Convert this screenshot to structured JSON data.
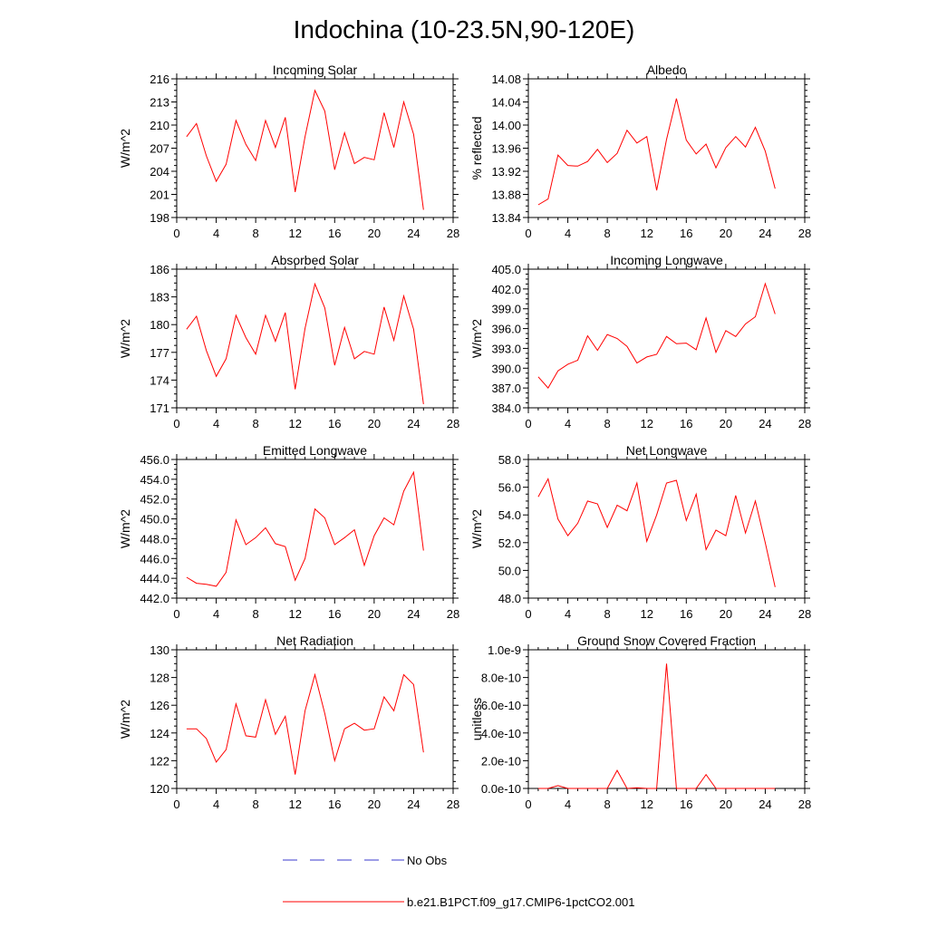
{
  "title": "Indochina (10-23.5N,90-120E)",
  "colors": {
    "series": "#ff0000",
    "obs": "#3a3acc",
    "axis": "#000000"
  },
  "legend": {
    "obs_label": "No Obs",
    "model_label": "b.e21.B1PCT.f09_g17.CMIP6-1pctCO2.001"
  },
  "chart_data": [
    {
      "type": "line",
      "title": "Incoming Solar",
      "ylabel": "W/m^2",
      "xlim": [
        0,
        28
      ],
      "ylim": [
        198,
        216
      ],
      "xticks": [
        "0",
        "4",
        "8",
        "12",
        "16",
        "20",
        "24",
        "28"
      ],
      "yticks": [
        "198",
        "201",
        "204",
        "207",
        "210",
        "213",
        "216"
      ],
      "x": [
        1,
        2,
        3,
        4,
        5,
        6,
        7,
        8,
        9,
        10,
        11,
        12,
        13,
        14,
        15,
        16,
        17,
        18,
        19,
        20,
        21,
        22,
        23,
        24,
        25
      ],
      "series": [
        {
          "values": [
            208.5,
            210.2,
            206.0,
            202.7,
            204.9,
            210.6,
            207.5,
            205.4,
            210.6,
            207.1,
            211.0,
            201.3,
            208.5,
            214.5,
            211.8,
            204.2,
            209.0,
            205.0,
            205.8,
            205.5,
            211.6,
            207.1,
            213.0,
            208.8,
            199.0
          ]
        }
      ]
    },
    {
      "type": "line",
      "title": "Albedo",
      "ylabel": "% reflected",
      "xlim": [
        0,
        28
      ],
      "ylim": [
        13.84,
        14.08
      ],
      "xticks": [
        "0",
        "4",
        "8",
        "12",
        "16",
        "20",
        "24",
        "28"
      ],
      "yticks": [
        "13.84",
        "13.88",
        "13.92",
        "13.96",
        "14.00",
        "14.04",
        "14.08"
      ],
      "x": [
        1,
        2,
        3,
        4,
        5,
        6,
        7,
        8,
        9,
        10,
        11,
        12,
        13,
        14,
        15,
        16,
        17,
        18,
        19,
        20,
        21,
        22,
        23,
        24,
        25
      ],
      "series": [
        {
          "values": [
            13.862,
            13.872,
            13.948,
            13.93,
            13.929,
            13.937,
            13.958,
            13.935,
            13.951,
            13.991,
            13.969,
            13.98,
            13.887,
            13.975,
            14.046,
            13.974,
            13.95,
            13.967,
            13.926,
            13.961,
            13.98,
            13.962,
            13.996,
            13.955,
            13.89
          ]
        }
      ]
    },
    {
      "type": "line",
      "title": "Absorbed Solar",
      "ylabel": "W/m^2",
      "xlim": [
        0,
        28
      ],
      "ylim": [
        171,
        186
      ],
      "xticks": [
        "0",
        "4",
        "8",
        "12",
        "16",
        "20",
        "24",
        "28"
      ],
      "yticks": [
        "171",
        "174",
        "177",
        "180",
        "183",
        "186"
      ],
      "x": [
        1,
        2,
        3,
        4,
        5,
        6,
        7,
        8,
        9,
        10,
        11,
        12,
        13,
        14,
        15,
        16,
        17,
        18,
        19,
        20,
        21,
        22,
        23,
        24,
        25
      ],
      "series": [
        {
          "values": [
            179.5,
            180.9,
            177.2,
            174.4,
            176.3,
            181.0,
            178.6,
            176.8,
            181.0,
            178.2,
            181.3,
            173.0,
            179.6,
            184.4,
            181.8,
            175.6,
            179.7,
            176.3,
            177.1,
            176.8,
            181.9,
            178.3,
            183.1,
            179.5,
            171.4
          ]
        }
      ]
    },
    {
      "type": "line",
      "title": "Incoming Longwave",
      "ylabel": "W/m^2",
      "xlim": [
        0,
        28
      ],
      "ylim": [
        384.0,
        405.0
      ],
      "xticks": [
        "0",
        "4",
        "8",
        "12",
        "16",
        "20",
        "24",
        "28"
      ],
      "yticks": [
        "384.0",
        "387.0",
        "390.0",
        "393.0",
        "396.0",
        "399.0",
        "402.0",
        "405.0"
      ],
      "x": [
        1,
        2,
        3,
        4,
        5,
        6,
        7,
        8,
        9,
        10,
        11,
        12,
        13,
        14,
        15,
        16,
        17,
        18,
        19,
        20,
        21,
        22,
        23,
        24,
        25
      ],
      "series": [
        {
          "values": [
            388.7,
            387.0,
            389.6,
            390.6,
            391.2,
            394.9,
            392.7,
            395.1,
            394.5,
            393.3,
            390.8,
            391.7,
            392.1,
            394.8,
            393.7,
            393.8,
            392.8,
            397.6,
            392.4,
            395.7,
            394.8,
            396.7,
            397.8,
            402.8,
            398.2
          ]
        }
      ]
    },
    {
      "type": "line",
      "title": "Emitted Longwave",
      "ylabel": "W/m^2",
      "xlim": [
        0,
        28
      ],
      "ylim": [
        442.0,
        456.0
      ],
      "xticks": [
        "0",
        "4",
        "8",
        "12",
        "16",
        "20",
        "24",
        "28"
      ],
      "yticks": [
        "442.0",
        "444.0",
        "446.0",
        "448.0",
        "450.0",
        "452.0",
        "454.0",
        "456.0"
      ],
      "x": [
        1,
        2,
        3,
        4,
        5,
        6,
        7,
        8,
        9,
        10,
        11,
        12,
        13,
        14,
        15,
        16,
        17,
        18,
        19,
        20,
        21,
        22,
        23,
        24,
        25
      ],
      "series": [
        {
          "values": [
            444.1,
            443.5,
            443.4,
            443.2,
            444.6,
            449.9,
            447.4,
            448.1,
            449.1,
            447.5,
            447.2,
            443.8,
            446.0,
            451.0,
            450.1,
            447.4,
            448.1,
            448.9,
            445.3,
            448.3,
            450.1,
            449.4,
            452.8,
            454.7,
            446.8
          ]
        }
      ]
    },
    {
      "type": "line",
      "title": "Net Longwave",
      "ylabel": "W/m^2",
      "xlim": [
        0,
        28
      ],
      "ylim": [
        48.0,
        58.0
      ],
      "xticks": [
        "0",
        "4",
        "8",
        "12",
        "16",
        "20",
        "24",
        "28"
      ],
      "yticks": [
        "48.0",
        "50.0",
        "52.0",
        "54.0",
        "56.0",
        "58.0"
      ],
      "x": [
        1,
        2,
        3,
        4,
        5,
        6,
        7,
        8,
        9,
        10,
        11,
        12,
        13,
        14,
        15,
        16,
        17,
        18,
        19,
        20,
        21,
        22,
        23,
        24,
        25
      ],
      "series": [
        {
          "values": [
            55.3,
            56.6,
            53.7,
            52.5,
            53.4,
            55.0,
            54.8,
            53.1,
            54.7,
            54.3,
            56.3,
            52.1,
            54.0,
            56.3,
            56.5,
            53.6,
            55.5,
            51.5,
            52.9,
            52.5,
            55.4,
            52.7,
            55.0,
            52.0,
            48.8
          ]
        }
      ]
    },
    {
      "type": "line",
      "title": "Net Radiation",
      "ylabel": "W/m^2",
      "xlim": [
        0,
        28
      ],
      "ylim": [
        120,
        130
      ],
      "xticks": [
        "0",
        "4",
        "8",
        "12",
        "16",
        "20",
        "24",
        "28"
      ],
      "yticks": [
        "120",
        "122",
        "124",
        "126",
        "128",
        "130"
      ],
      "x": [
        1,
        2,
        3,
        4,
        5,
        6,
        7,
        8,
        9,
        10,
        11,
        12,
        13,
        14,
        15,
        16,
        17,
        18,
        19,
        20,
        21,
        22,
        23,
        24,
        25
      ],
      "series": [
        {
          "values": [
            124.3,
            124.3,
            123.6,
            121.9,
            122.8,
            126.1,
            123.8,
            123.7,
            126.4,
            123.9,
            125.2,
            121.0,
            125.6,
            128.2,
            125.4,
            122.0,
            124.3,
            124.7,
            124.2,
            124.3,
            126.6,
            125.6,
            128.2,
            127.5,
            122.6
          ]
        }
      ]
    },
    {
      "type": "line",
      "title": "Ground Snow Covered Fraction",
      "ylabel": "unitless",
      "xlim": [
        0,
        28
      ],
      "ylim": [
        0,
        1e-09
      ],
      "xticks": [
        "0",
        "4",
        "8",
        "12",
        "16",
        "20",
        "24",
        "28"
      ],
      "yticks": [
        "0.0e-10",
        "2.0e-10",
        "4.0e-10",
        "6.0e-10",
        "8.0e-10",
        "1.0e-9"
      ],
      "x": [
        1,
        2,
        3,
        4,
        5,
        6,
        7,
        8,
        9,
        10,
        11,
        12,
        13,
        14,
        15,
        16,
        17,
        18,
        19,
        20,
        21,
        22,
        23,
        24,
        25
      ],
      "series": [
        {
          "values": [
            0,
            0,
            2e-11,
            0,
            0,
            0,
            0,
            0,
            1.3e-10,
            0,
            5e-12,
            0,
            0,
            9e-10,
            0,
            0,
            0,
            1e-10,
            0,
            0,
            0,
            0,
            0,
            0,
            0
          ]
        }
      ]
    }
  ]
}
